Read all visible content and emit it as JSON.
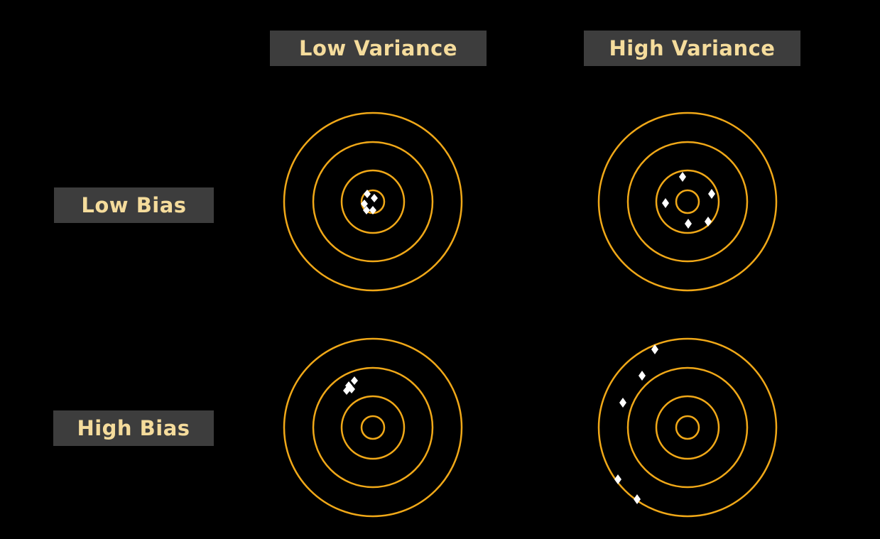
{
  "headers": {
    "columns": [
      "Low Variance",
      "High Variance"
    ],
    "rows": [
      "Low Bias",
      "High Bias"
    ]
  },
  "colors": {
    "background": "#000000",
    "ring": "#f0a818",
    "label_bg": "#3d3d3d",
    "label_text": "#f5dc9c",
    "hit": "#ffffff"
  },
  "icons": {
    "target": "concentric-ring-target",
    "hit": "white-diamond-marker"
  }
}
